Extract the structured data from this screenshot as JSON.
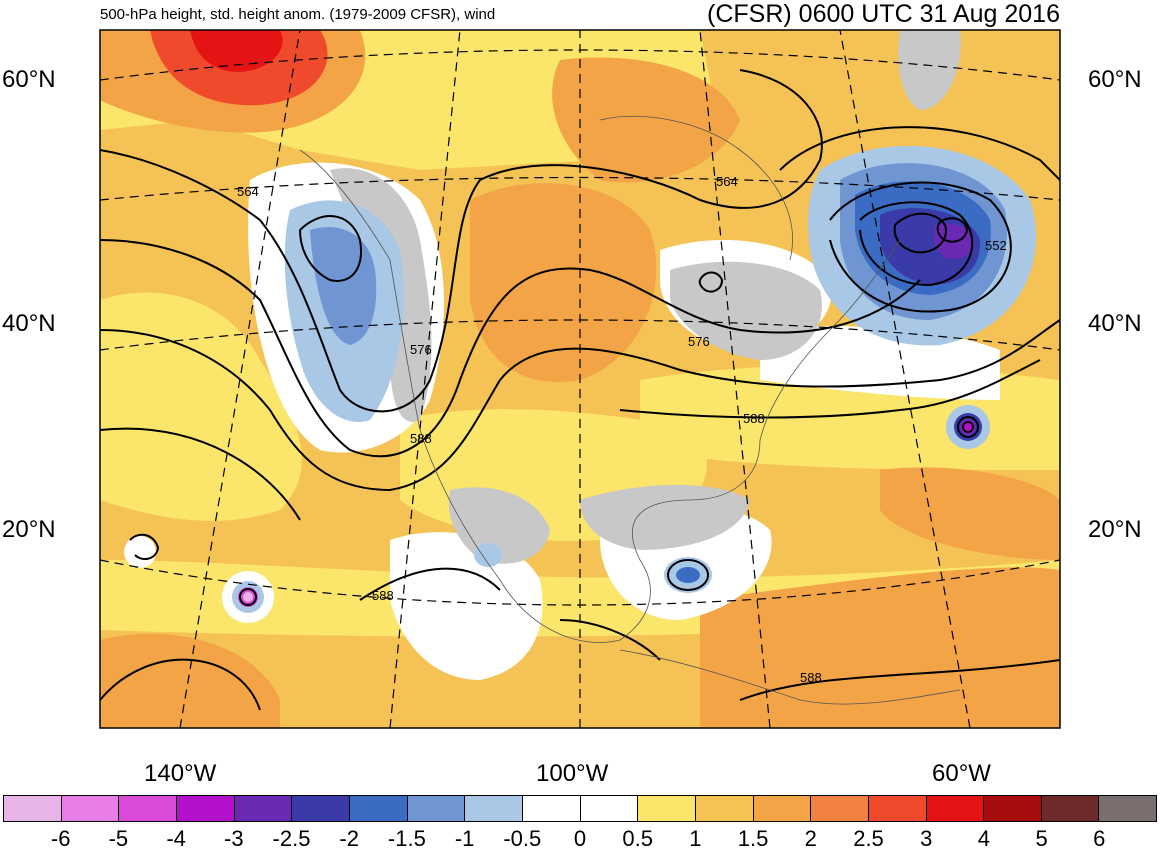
{
  "header": {
    "subtitle": "500-hPa height, std. height anom. (1979-2009 CFSR), wind",
    "title": "(CFSR) 0600 UTC 31 Aug 2016"
  },
  "axes": {
    "lat_left": [
      "60°N",
      "40°N",
      "20°N"
    ],
    "lat_right": [
      "60°N",
      "40°N",
      "20°N"
    ],
    "lon": [
      "140°W",
      "100°W",
      "60°W"
    ]
  },
  "contours": {
    "labels": [
      "564",
      "564",
      "552",
      "576",
      "576",
      "588",
      "588",
      "588",
      "588"
    ]
  },
  "legend": {
    "tick_labels": [
      "-6",
      "-5",
      "-4",
      "-3",
      "-2.5",
      "-2",
      "-1.5",
      "-1",
      "-0.5",
      "0",
      "0.5",
      "1",
      "1.5",
      "2",
      "2.5",
      "3",
      "4",
      "5",
      "6"
    ],
    "colors": [
      "#e8b4e8",
      "#e87de8",
      "#d94ad9",
      "#b310cc",
      "#6a28b3",
      "#3a3aa8",
      "#3a6cc4",
      "#6f96d2",
      "#a8c8e6",
      "#ffffff",
      "#ffffff",
      "#fbe56a",
      "#f5c355",
      "#f2a446",
      "#f08140",
      "#f04a2c",
      "#e51414",
      "#a80d0d",
      "#6e2a2a",
      "#7a6e6e"
    ]
  }
}
